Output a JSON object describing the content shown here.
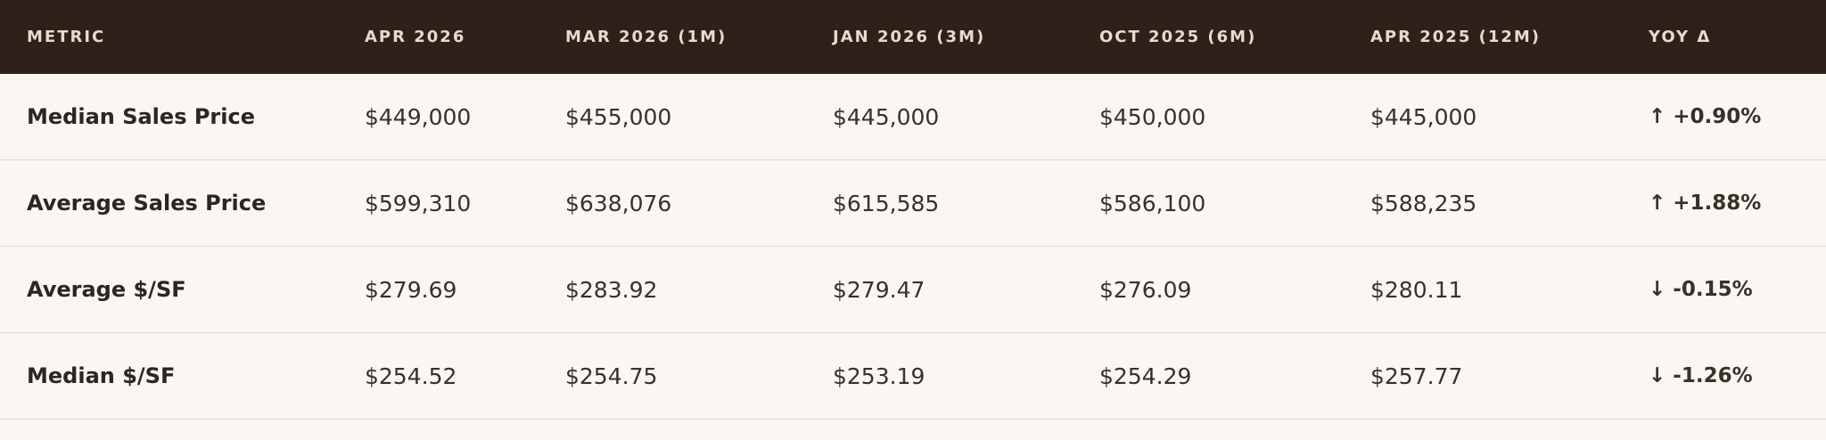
{
  "table": {
    "headers": [
      "METRIC",
      "APR 2026",
      "MAR 2026 (1M)",
      "JAN 2026 (3M)",
      "OCT 2025 (6M)",
      "APR 2025 (12M)",
      "YOY Δ"
    ],
    "rows": [
      {
        "metric": "Median Sales Price",
        "values": [
          "$449,000",
          "$455,000",
          "$445,000",
          "$450,000",
          "$445,000"
        ],
        "yoy_arrow": "↑",
        "yoy": "+0.90%"
      },
      {
        "metric": "Average Sales Price",
        "values": [
          "$599,310",
          "$638,076",
          "$615,585",
          "$586,100",
          "$588,235"
        ],
        "yoy_arrow": "↑",
        "yoy": "+1.88%"
      },
      {
        "metric": "Average $/SF",
        "values": [
          "$279.69",
          "$283.92",
          "$279.47",
          "$276.09",
          "$280.11"
        ],
        "yoy_arrow": "↓",
        "yoy": "-0.15%"
      },
      {
        "metric": "Median $/SF",
        "values": [
          "$254.52",
          "$254.75",
          "$253.19",
          "$254.29",
          "$257.77"
        ],
        "yoy_arrow": "↓",
        "yoy": "-1.26%"
      }
    ]
  },
  "colors": {
    "header_bg": "#2e2119",
    "header_text": "#e7dbcb",
    "body_bg": "#faf6f2",
    "divider": "#ead7c8",
    "text": "#2e2520"
  }
}
